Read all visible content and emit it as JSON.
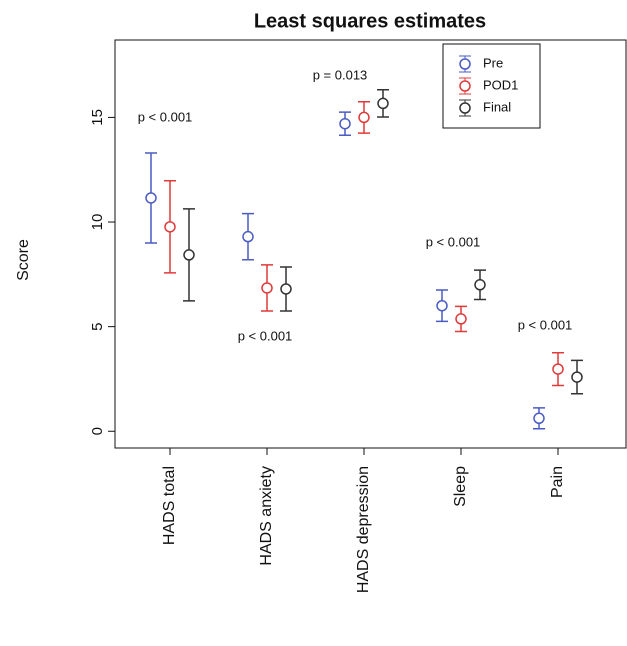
{
  "chart_data": {
    "type": "errorbar",
    "title": "Least squares estimates",
    "y_label": "Score",
    "categories": [
      "HADS total",
      "HADS anxiety",
      "HADS depression",
      "Sleep",
      "Pain"
    ],
    "series": [
      {
        "name": "Pre",
        "color": "#4a5bc4",
        "values": [
          11.15,
          9.3,
          14.7,
          6.0,
          0.62
        ],
        "errors": [
          2.15,
          1.1,
          0.55,
          0.75,
          0.5
        ]
      },
      {
        "name": "POD1",
        "color": "#e03a3a",
        "values": [
          9.77,
          6.85,
          15.0,
          5.37,
          2.97
        ],
        "errors": [
          2.2,
          1.1,
          0.75,
          0.6,
          0.78
        ]
      },
      {
        "name": "Final",
        "color": "#333333",
        "values": [
          8.43,
          6.8,
          15.67,
          7.0,
          2.59
        ],
        "errors": [
          2.2,
          1.05,
          0.65,
          0.7,
          0.8
        ]
      }
    ],
    "annotations": [
      "p < 0.001",
      "p < 0.001",
      "p = 0.013",
      "p < 0.001",
      "p < 0.001"
    ],
    "ylim": [
      -0.8,
      18.7
    ],
    "yticks": [
      0,
      5,
      10,
      15
    ],
    "legend": "top-right"
  }
}
